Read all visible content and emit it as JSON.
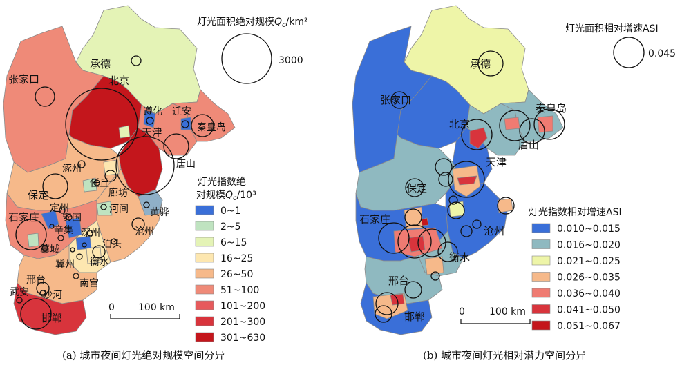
{
  "panel_a": {
    "caption": "(a) 城市夜间灯光绝对规模空间分异",
    "size_legend_title_prefix": "灯光面积绝对规模",
    "size_legend_symbol": "Q",
    "size_legend_subscript": "c",
    "size_legend_unit": "/km²",
    "size_legend_value": "3000",
    "class_legend_title_line1": "灯光指数绝",
    "class_legend_title_line2_prefix": "对规模",
    "class_legend_title_symbol": "Q",
    "class_legend_title_subscript": "c",
    "class_legend_title_unit": "/10³",
    "classes": [
      {
        "label": "0~1",
        "color": "#3a6fd8"
      },
      {
        "label": "2~5",
        "color": "#bfe3c0"
      },
      {
        "label": "6~15",
        "color": "#e4f3b6"
      },
      {
        "label": "16~25",
        "color": "#fde7b0"
      },
      {
        "label": "26~50",
        "color": "#f6b98a"
      },
      {
        "label": "51~100",
        "color": "#ef8a78"
      },
      {
        "label": "101~200",
        "color": "#e65a5c"
      },
      {
        "label": "201~300",
        "color": "#d8343c"
      },
      {
        "label": "301~630",
        "color": "#c4161c"
      }
    ],
    "scale_zero": "0",
    "scale_label": "100 km",
    "cities": [
      {
        "name": "承德"
      },
      {
        "name": "张家口"
      },
      {
        "name": "北京"
      },
      {
        "name": "遵化"
      },
      {
        "name": "迁安"
      },
      {
        "name": "秦皇岛"
      },
      {
        "name": "天津"
      },
      {
        "name": "唐山"
      },
      {
        "name": "涿州"
      },
      {
        "name": "任丘"
      },
      {
        "name": "廊坊"
      },
      {
        "name": "保定"
      },
      {
        "name": "定州"
      },
      {
        "name": "河间"
      },
      {
        "name": "黄骅"
      },
      {
        "name": "石家庄"
      },
      {
        "name": "安国"
      },
      {
        "name": "辛集"
      },
      {
        "name": "深州"
      },
      {
        "name": "沧州"
      },
      {
        "name": "藁城"
      },
      {
        "name": "泊头"
      },
      {
        "name": "冀州"
      },
      {
        "name": "衡水"
      },
      {
        "name": "邢台"
      },
      {
        "name": "南宫"
      },
      {
        "name": "武安"
      },
      {
        "name": "沙河"
      },
      {
        "name": "邯郸"
      }
    ]
  },
  "panel_b": {
    "caption": "(b) 城市夜间灯光相对潜力空间分异",
    "size_legend_title": "灯光面积相对增速ASI",
    "size_legend_value": "0.045",
    "class_legend_title": "灯光指数相对增速ASI",
    "classes": [
      {
        "label": "0.010~0.015",
        "color": "#3a6fd8"
      },
      {
        "label": "0.016~0.020",
        "color": "#8fb9c0"
      },
      {
        "label": "0.021~0.025",
        "color": "#eef5a8"
      },
      {
        "label": "0.026~0.035",
        "color": "#f6b98a"
      },
      {
        "label": "0.036~0.040",
        "color": "#ef7b72"
      },
      {
        "label": "0.041~0.050",
        "color": "#d8343c"
      },
      {
        "label": "0.051~0.067",
        "color": "#c4161c"
      }
    ],
    "scale_zero": "0",
    "scale_label": "100 km",
    "cities": [
      {
        "name": "承德"
      },
      {
        "name": "张家口"
      },
      {
        "name": "北京"
      },
      {
        "name": "秦皇岛"
      },
      {
        "name": "唐山"
      },
      {
        "name": "天津"
      },
      {
        "name": "保定"
      },
      {
        "name": "石家庄"
      },
      {
        "name": "沧州"
      },
      {
        "name": "衡水"
      },
      {
        "name": "邢台"
      },
      {
        "name": "邯郸"
      }
    ]
  }
}
